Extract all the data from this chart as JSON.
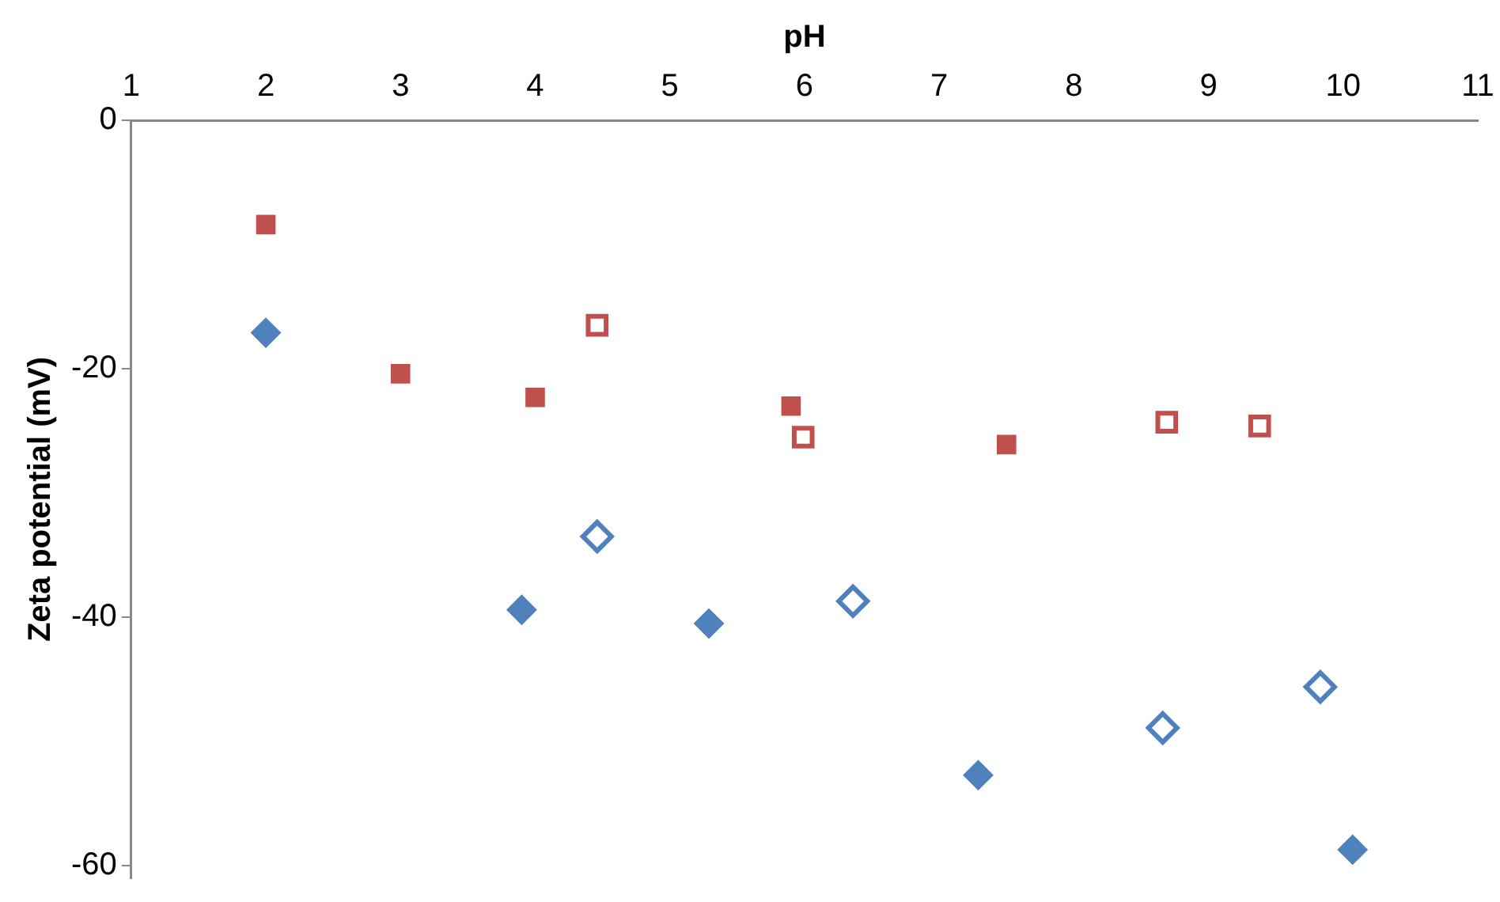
{
  "chart_data": {
    "type": "scatter",
    "xlabel": "pH",
    "ylabel": "Zeta potential (mV)",
    "xlim": [
      1,
      11
    ],
    "xticks": [
      1,
      2,
      3,
      4,
      5,
      6,
      7,
      8,
      9,
      10,
      11
    ],
    "ylim": [
      -61,
      0
    ],
    "yticks": [
      0,
      -20,
      -40,
      -60
    ],
    "grid": false,
    "legend": false,
    "series": [
      {
        "color": "#c0504d",
        "marker": "square",
        "x": [
          2,
          3,
          4,
          5.9,
          7.5
        ],
        "values": [
          -8.4,
          -20.4,
          -22.3,
          -23.0,
          -26.1
        ]
      },
      {
        "color": "#c0504d",
        "marker": "square",
        "x": [
          4.46,
          5.99,
          8.69,
          9.38
        ],
        "values": [
          -16.5,
          -25.5,
          -24.3,
          -24.6
        ]
      },
      {
        "color": "#4f81bd",
        "marker": "diamond",
        "x": [
          2,
          3.9,
          5.29,
          7.29,
          10.07
        ],
        "values": [
          -17.1,
          -39.4,
          -40.5,
          -52.7,
          -58.7
        ]
      },
      {
        "color": "#4f81bd",
        "marker": "diamond",
        "x": [
          4.46,
          6.36,
          8.66,
          9.83
        ],
        "values": [
          -33.5,
          -38.7,
          -48.9,
          -45.6
        ]
      }
    ]
  }
}
